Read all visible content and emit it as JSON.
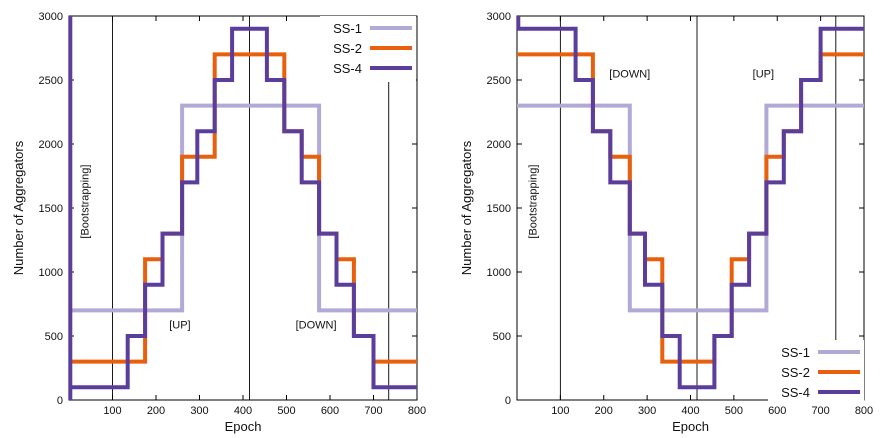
{
  "chart_data": [
    {
      "type": "line",
      "xlabel": "Epoch",
      "ylabel": "Number of Aggregators",
      "xlim": [
        0,
        800
      ],
      "ylim": [
        0,
        3000
      ],
      "xticks": [
        "100",
        "200",
        "300",
        "400",
        "500",
        "600",
        "700",
        "800"
      ],
      "yticks": [
        "0",
        "500",
        "1000",
        "1500",
        "2000",
        "2500",
        "3000"
      ],
      "grid": false,
      "legend_position": "top-right",
      "vlines": [
        100,
        415,
        735
      ],
      "annotations": [
        {
          "text": "[Bootstrapping]",
          "x": 45,
          "y": 1550,
          "rotate": true
        },
        {
          "text": "[UP]",
          "x": 255,
          "y": 560
        },
        {
          "text": "[DOWN]",
          "x": 568,
          "y": 560
        }
      ],
      "series": [
        {
          "name": "SS-1",
          "color": "#b3a9d6",
          "step": true,
          "x": [
            0,
            260,
            260,
            575,
            575,
            800
          ],
          "y": [
            700,
            700,
            2300,
            2300,
            700,
            700
          ]
        },
        {
          "name": "SS-2",
          "color": "#e8600e",
          "step": true,
          "x": [
            0,
            175,
            175,
            215,
            215,
            260,
            260,
            335,
            335,
            380,
            380,
            495,
            495,
            535,
            535,
            575,
            575,
            615,
            615,
            655,
            655,
            700,
            700,
            800
          ],
          "y": [
            300,
            300,
            1100,
            1100,
            1300,
            1300,
            1900,
            1900,
            2700,
            2700,
            2700,
            2700,
            2100,
            2100,
            1900,
            1900,
            1300,
            1300,
            1100,
            1100,
            500,
            500,
            300,
            300
          ]
        },
        {
          "name": "SS-4",
          "color": "#5b3e9c",
          "step": true,
          "x": [
            0,
            135,
            135,
            175,
            175,
            215,
            215,
            260,
            260,
            295,
            295,
            335,
            335,
            375,
            375,
            455,
            455,
            495,
            495,
            535,
            535,
            575,
            575,
            615,
            615,
            655,
            655,
            700,
            700,
            800
          ],
          "y": [
            100,
            100,
            500,
            500,
            900,
            900,
            1300,
            1300,
            1700,
            1700,
            2100,
            2100,
            2500,
            2500,
            2900,
            2900,
            2500,
            2500,
            2100,
            2100,
            1700,
            1700,
            1300,
            1300,
            900,
            900,
            500,
            500,
            100,
            100
          ],
          "spike": {
            "x": 3,
            "y": [
              0,
              3000
            ]
          }
        }
      ]
    },
    {
      "type": "line",
      "xlabel": "Epoch",
      "ylabel": "Number of Aggregators",
      "xlim": [
        0,
        800
      ],
      "ylim": [
        0,
        3000
      ],
      "xticks": [
        "100",
        "200",
        "300",
        "400",
        "500",
        "600",
        "700",
        "800"
      ],
      "yticks": [
        "0",
        "500",
        "1000",
        "1500",
        "2000",
        "2500",
        "3000"
      ],
      "grid": false,
      "legend_position": "bottom-right",
      "vlines": [
        100,
        415,
        735
      ],
      "annotations": [
        {
          "text": "[Bootstrapping]",
          "x": 45,
          "y": 1550,
          "rotate": true
        },
        {
          "text": "[DOWN]",
          "x": 260,
          "y": 2520
        },
        {
          "text": "[UP]",
          "x": 568,
          "y": 2520
        }
      ],
      "series": [
        {
          "name": "SS-1",
          "color": "#b3a9d6",
          "step": true,
          "x": [
            0,
            260,
            260,
            575,
            575,
            800
          ],
          "y": [
            2300,
            2300,
            700,
            700,
            2300,
            2300
          ]
        },
        {
          "name": "SS-2",
          "color": "#e8600e",
          "step": true,
          "x": [
            0,
            175,
            175,
            215,
            215,
            260,
            260,
            295,
            295,
            335,
            335,
            415,
            415,
            455,
            455,
            495,
            495,
            535,
            535,
            575,
            575,
            615,
            615,
            655,
            655,
            700,
            700,
            800
          ],
          "y": [
            2700,
            2700,
            2100,
            2100,
            1900,
            1900,
            1300,
            1300,
            1100,
            1100,
            300,
            300,
            300,
            300,
            500,
            500,
            1100,
            1100,
            1300,
            1300,
            1900,
            1900,
            2100,
            2100,
            2500,
            2500,
            2700,
            2700
          ]
        },
        {
          "name": "SS-4",
          "color": "#5b3e9c",
          "step": true,
          "x": [
            0,
            135,
            135,
            175,
            175,
            215,
            215,
            260,
            260,
            295,
            295,
            335,
            335,
            375,
            375,
            455,
            455,
            495,
            495,
            535,
            535,
            575,
            575,
            615,
            615,
            655,
            655,
            700,
            700,
            800
          ],
          "y": [
            2900,
            2900,
            2500,
            2500,
            2100,
            2100,
            1700,
            1700,
            1300,
            1300,
            900,
            900,
            500,
            500,
            100,
            100,
            500,
            500,
            900,
            900,
            1300,
            1300,
            1700,
            1700,
            2100,
            2100,
            2500,
            2500,
            2900,
            2900
          ],
          "spike": {
            "x": 3,
            "y": [
              2900,
              3000
            ]
          }
        }
      ]
    }
  ]
}
